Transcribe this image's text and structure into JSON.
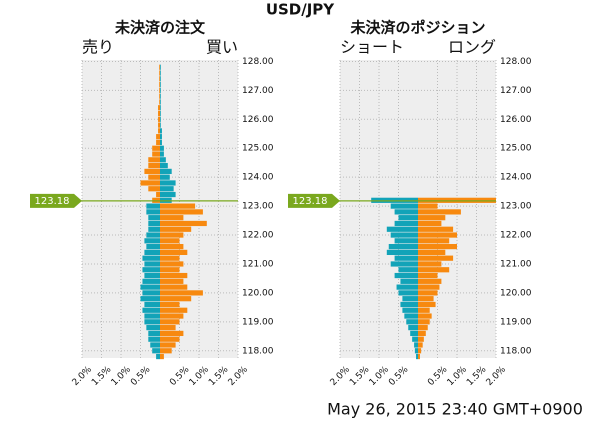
{
  "title": "USD/JPY",
  "timestamp": "May 26, 2015 23:40 GMT+0900",
  "chart_data": [
    {
      "type": "bar",
      "orientation": "horizontal",
      "title": "未決済の注文",
      "left_label": "売り",
      "right_label": "買い",
      "y": [
        117.8,
        118.0,
        118.2,
        118.4,
        118.6,
        118.8,
        119.0,
        119.2,
        119.4,
        119.6,
        119.8,
        120.0,
        120.2,
        120.4,
        120.6,
        120.8,
        121.0,
        121.2,
        121.4,
        121.6,
        121.8,
        122.0,
        122.2,
        122.4,
        122.6,
        122.8,
        123.0,
        123.2,
        123.4,
        123.6,
        123.8,
        124.0,
        124.2,
        124.4,
        124.6,
        124.8,
        125.0,
        125.2,
        125.4,
        125.6,
        125.8,
        126.0,
        126.2,
        126.4,
        126.6,
        126.8,
        127.0,
        127.2,
        127.4,
        127.6,
        127.8
      ],
      "series": [
        {
          "side": "left",
          "color": "#12a3b8",
          "values": [
            0.1,
            0.2,
            0.25,
            0.3,
            0.3,
            0.35,
            0.4,
            0.4,
            0.45,
            0.4,
            0.5,
            0.45,
            0.5,
            0.45,
            0.4,
            0.45,
            0.4,
            0.45,
            0.4,
            0.35,
            0.4,
            0.35,
            0.3,
            0.3,
            0.3,
            0.35,
            0.35,
            null,
            null,
            null,
            null,
            null,
            null,
            null,
            null,
            null,
            null,
            null,
            null,
            null,
            null,
            null,
            null,
            null,
            null,
            null,
            null,
            null,
            null,
            null,
            null
          ]
        },
        {
          "side": "left",
          "color": "#f7890f",
          "values": [
            null,
            null,
            null,
            null,
            null,
            null,
            null,
            null,
            null,
            null,
            null,
            null,
            null,
            null,
            null,
            null,
            null,
            null,
            null,
            null,
            null,
            null,
            null,
            null,
            null,
            null,
            null,
            0.2,
            0.1,
            0.3,
            0.5,
            0.3,
            0.4,
            0.3,
            0.3,
            0.2,
            0.2,
            0.1,
            0.1,
            0.05,
            0.05,
            0.05,
            0.05,
            0.05,
            0.02,
            0.02,
            0.02,
            0.02,
            0.02,
            0.02,
            0.02
          ]
        },
        {
          "side": "right",
          "color": "#f7890f",
          "values": [
            0.1,
            0.3,
            0.4,
            0.5,
            0.6,
            0.4,
            0.5,
            0.6,
            0.7,
            0.5,
            0.8,
            1.1,
            0.7,
            0.6,
            0.7,
            0.5,
            0.6,
            0.5,
            0.7,
            0.6,
            0.5,
            0.6,
            0.8,
            1.2,
            0.6,
            1.1,
            0.9,
            null,
            null,
            null,
            null,
            null,
            null,
            null,
            null,
            null,
            null,
            null,
            null,
            null,
            null,
            null,
            null,
            null,
            null,
            null,
            null,
            null,
            null,
            null,
            null
          ]
        },
        {
          "side": "right",
          "color": "#12a3b8",
          "values": [
            null,
            null,
            null,
            null,
            null,
            null,
            null,
            null,
            null,
            null,
            null,
            null,
            null,
            null,
            null,
            null,
            null,
            null,
            null,
            null,
            null,
            null,
            null,
            null,
            null,
            null,
            null,
            0.3,
            0.4,
            0.35,
            0.4,
            0.25,
            0.3,
            0.2,
            0.15,
            0.1,
            0.1,
            0.05,
            0.05,
            0.05,
            0.02,
            0.02,
            0.02,
            0.02,
            0.02,
            0.02,
            0.02,
            0.02,
            0.02,
            0.02,
            0.02
          ]
        }
      ],
      "xlim": [
        -2,
        2
      ],
      "xticks": [
        {
          "value": -2,
          "label": "2.0%"
        },
        {
          "value": -1.5,
          "label": "1.5%"
        },
        {
          "value": -1,
          "label": "1.0%"
        },
        {
          "value": -0.5,
          "label": "0.5%"
        },
        {
          "value": 0.5,
          "label": "0.5%"
        },
        {
          "value": 1,
          "label": "1.0%"
        },
        {
          "value": 1.5,
          "label": "1.5%"
        },
        {
          "value": 2,
          "label": "2.0%"
        }
      ],
      "ylim": [
        117.75,
        128.05
      ],
      "yticks": [
        {
          "value": 118,
          "label": "118.00"
        },
        {
          "value": 119,
          "label": "119.00"
        },
        {
          "value": 120,
          "label": "120.00"
        },
        {
          "value": 121,
          "label": "121.00"
        },
        {
          "value": 122,
          "label": "122.00"
        },
        {
          "value": 123,
          "label": "123.00"
        },
        {
          "value": 124,
          "label": "124.00"
        },
        {
          "value": 125,
          "label": "125.00"
        },
        {
          "value": 126,
          "label": "126.00"
        },
        {
          "value": 127,
          "label": "127.00"
        },
        {
          "value": 128,
          "label": "128.00"
        }
      ],
      "current_price": 123.18,
      "grid": true
    },
    {
      "type": "bar",
      "orientation": "horizontal",
      "title": "未決済のポジション",
      "left_label": "ショート",
      "right_label": "ロング",
      "y": [
        117.8,
        118.0,
        118.2,
        118.4,
        118.6,
        118.8,
        119.0,
        119.2,
        119.4,
        119.6,
        119.8,
        120.0,
        120.2,
        120.4,
        120.6,
        120.8,
        121.0,
        121.2,
        121.4,
        121.6,
        121.8,
        122.0,
        122.2,
        122.4,
        122.6,
        122.8,
        123.0,
        123.2
      ],
      "series": [
        {
          "side": "left",
          "color": "#12a3b8",
          "values": [
            0.05,
            0.08,
            0.1,
            0.15,
            0.2,
            0.25,
            0.3,
            0.35,
            0.4,
            0.45,
            0.4,
            0.5,
            0.55,
            0.45,
            0.6,
            0.5,
            0.7,
            0.6,
            0.8,
            0.75,
            0.6,
            0.7,
            0.8,
            0.6,
            0.5,
            0.6,
            0.7,
            1.2
          ]
        },
        {
          "side": "right",
          "color": "#f7890f",
          "values": [
            0.05,
            0.08,
            0.12,
            0.15,
            0.2,
            0.25,
            0.3,
            0.35,
            0.3,
            0.45,
            0.4,
            0.5,
            0.55,
            0.6,
            0.5,
            0.8,
            0.6,
            0.9,
            0.7,
            1.0,
            0.8,
            1.0,
            0.9,
            0.6,
            0.7,
            1.1,
            0.5,
            2.0
          ]
        }
      ],
      "xlim": [
        -2,
        2
      ],
      "xticks": [
        {
          "value": -2,
          "label": "2.0%"
        },
        {
          "value": -1.5,
          "label": "1.5%"
        },
        {
          "value": -1,
          "label": "1.0%"
        },
        {
          "value": -0.5,
          "label": "0.5%"
        },
        {
          "value": 0.5,
          "label": "0.5%"
        },
        {
          "value": 1,
          "label": "1.0%"
        },
        {
          "value": 1.5,
          "label": "1.5%"
        },
        {
          "value": 2,
          "label": "2.0%"
        }
      ],
      "ylim": [
        117.75,
        128.05
      ],
      "yticks": [
        {
          "value": 118,
          "label": "118.00"
        },
        {
          "value": 119,
          "label": "119.00"
        },
        {
          "value": 120,
          "label": "120.00"
        },
        {
          "value": 121,
          "label": "121.00"
        },
        {
          "value": 122,
          "label": "122.00"
        },
        {
          "value": 123,
          "label": "123.00"
        },
        {
          "value": 124,
          "label": "124.00"
        },
        {
          "value": 125,
          "label": "125.00"
        },
        {
          "value": 126,
          "label": "126.00"
        },
        {
          "value": 127,
          "label": "127.00"
        },
        {
          "value": 128,
          "label": "128.00"
        }
      ],
      "current_price": 123.18,
      "grid": true
    }
  ]
}
